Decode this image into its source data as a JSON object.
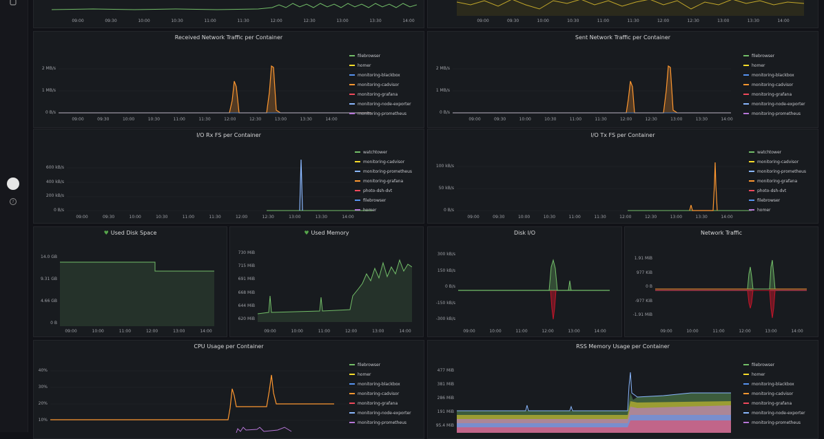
{
  "sidebar": {
    "top_icon": "dashboard-icon",
    "avatar": "user-avatar",
    "help_icon": "help-icon"
  },
  "colors": {
    "green": "#73bf69",
    "yellow": "#fade2a",
    "blue": "#5794f2",
    "orange": "#ff9830",
    "red": "#f2495c",
    "lightblue": "#8ab8ff",
    "purple": "#b877d9",
    "grey": "#7f8389",
    "darkred": "#c4162a"
  },
  "top_left": {
    "xticks": [
      "09:00",
      "09:30",
      "10:00",
      "10:30",
      "11:00",
      "11:30",
      "12:00",
      "12:30",
      "13:00",
      "13:30",
      "14:00"
    ]
  },
  "top_right": {
    "xticks": [
      "09:00",
      "09:30",
      "10:00",
      "10:30",
      "11:00",
      "11:30",
      "12:00",
      "12:30",
      "13:00",
      "13:30",
      "14:00"
    ]
  },
  "panels": {
    "net_rx": {
      "title": "Received Network Traffic per Container",
      "yticks": [
        "2 MB/s",
        "1 MB/s",
        "0 B/s"
      ],
      "xticks": [
        "09:00",
        "09:30",
        "10:00",
        "10:30",
        "11:00",
        "11:30",
        "12:00",
        "12:30",
        "13:00",
        "13:30",
        "14:00"
      ],
      "legend": [
        {
          "label": "filebrowser",
          "color": "green"
        },
        {
          "label": "homer",
          "color": "yellow"
        },
        {
          "label": "monitoring-blackbox",
          "color": "blue"
        },
        {
          "label": "monitoring-cadvisor",
          "color": "orange"
        },
        {
          "label": "monitoring-grafana",
          "color": "red"
        },
        {
          "label": "monitoring-node-exporter",
          "color": "lightblue"
        },
        {
          "label": "monitoring-prometheus",
          "color": "purple"
        }
      ]
    },
    "net_tx": {
      "title": "Sent Network Traffic per Container",
      "yticks": [
        "2 MB/s",
        "1 MB/s",
        "0 B/s"
      ],
      "xticks": [
        "09:00",
        "09:30",
        "10:00",
        "10:30",
        "11:00",
        "11:30",
        "12:00",
        "12:30",
        "13:00",
        "13:30",
        "14:00"
      ],
      "legend": [
        {
          "label": "filebrowser",
          "color": "green"
        },
        {
          "label": "homer",
          "color": "yellow"
        },
        {
          "label": "monitoring-blackbox",
          "color": "blue"
        },
        {
          "label": "monitoring-cadvisor",
          "color": "orange"
        },
        {
          "label": "monitoring-grafana",
          "color": "red"
        },
        {
          "label": "monitoring-node-exporter",
          "color": "lightblue"
        },
        {
          "label": "monitoring-prometheus",
          "color": "purple"
        }
      ]
    },
    "io_rx": {
      "title": "I/O Rx FS per Container",
      "yticks": [
        "600 kB/s",
        "400 kB/s",
        "200 kB/s",
        "0 B/s"
      ],
      "xticks": [
        "09:00",
        "09:30",
        "10:00",
        "10:30",
        "11:00",
        "11:30",
        "12:00",
        "12:30",
        "13:00",
        "13:30",
        "14:00"
      ],
      "legend": [
        {
          "label": "watchtower",
          "color": "green"
        },
        {
          "label": "monitoring-cadvisor",
          "color": "yellow"
        },
        {
          "label": "monitoring-prometheus",
          "color": "lightblue"
        },
        {
          "label": "monitoring-grafana",
          "color": "orange"
        },
        {
          "label": "photo-dsh-dvt",
          "color": "red"
        },
        {
          "label": "filebrowser",
          "color": "blue"
        },
        {
          "label": "homer",
          "color": "purple"
        }
      ]
    },
    "io_tx": {
      "title": "I/O Tx FS per Container",
      "yticks": [
        "100 kB/s",
        "50 kB/s",
        "0 B/s"
      ],
      "xticks": [
        "09:00",
        "09:30",
        "10:00",
        "10:30",
        "11:00",
        "11:30",
        "12:00",
        "12:30",
        "13:00",
        "13:30",
        "14:00"
      ],
      "legend": [
        {
          "label": "watchtower",
          "color": "green"
        },
        {
          "label": "monitoring-cadvisor",
          "color": "yellow"
        },
        {
          "label": "monitoring-prometheus",
          "color": "lightblue"
        },
        {
          "label": "monitoring-grafana",
          "color": "orange"
        },
        {
          "label": "photo-dsh-dvt",
          "color": "red"
        },
        {
          "label": "filebrowser",
          "color": "blue"
        },
        {
          "label": "homer",
          "color": "purple"
        }
      ]
    },
    "disk_space": {
      "title": "Used Disk Space",
      "yticks": [
        "14.0 GB",
        "9.31 GB",
        "4.66 GB",
        "0 B"
      ],
      "xticks": [
        "09:00",
        "10:00",
        "11:00",
        "12:00",
        "13:00",
        "14:00"
      ]
    },
    "memory": {
      "title": "Used Memory",
      "yticks": [
        "730 MiB",
        "715 MiB",
        "691 MiB",
        "668 MiB",
        "644 MiB",
        "620 MiB"
      ],
      "xticks": [
        "09:00",
        "10:00",
        "11:00",
        "12:00",
        "13:00",
        "14:00"
      ]
    },
    "disk_io": {
      "title": "Disk I/O",
      "yticks": [
        "300 kB/s",
        "150 kB/s",
        "0 B/s",
        "-150 kB/s",
        "-300 kB/s"
      ],
      "xticks": [
        "09:00",
        "10:00",
        "11:00",
        "12:00",
        "13:00",
        "14:00"
      ]
    },
    "network": {
      "title": "Network Traffic",
      "yticks": [
        "1.91 MiB",
        "977 KiB",
        "0 B",
        "-977 KiB",
        "-1.91 MiB"
      ],
      "xticks": [
        "09:00",
        "10:00",
        "11:00",
        "12:00",
        "13:00",
        "14:00"
      ]
    },
    "cpu": {
      "title": "CPU Usage per Container",
      "yticks": [
        "40%",
        "30%",
        "20%",
        "10%"
      ],
      "legend": [
        {
          "label": "filebrowser",
          "color": "green"
        },
        {
          "label": "homer",
          "color": "yellow"
        },
        {
          "label": "monitoring-blackbox",
          "color": "blue"
        },
        {
          "label": "monitoring-cadvisor",
          "color": "orange"
        },
        {
          "label": "monitoring-grafana",
          "color": "red"
        },
        {
          "label": "monitoring-node-exporter",
          "color": "lightblue"
        },
        {
          "label": "monitoring-prometheus",
          "color": "purple"
        }
      ]
    },
    "rss": {
      "title": "RSS Memory Usage per Container",
      "yticks": [
        "477 MiB",
        "381 MiB",
        "286 MiB",
        "191 MiB",
        "95.4 MiB"
      ],
      "legend": [
        {
          "label": "filebrowser",
          "color": "green"
        },
        {
          "label": "homer",
          "color": "yellow"
        },
        {
          "label": "monitoring-blackbox",
          "color": "blue"
        },
        {
          "label": "monitoring-cadvisor",
          "color": "orange"
        },
        {
          "label": "monitoring-grafana",
          "color": "red"
        },
        {
          "label": "monitoring-node-exporter",
          "color": "lightblue"
        },
        {
          "label": "monitoring-prometheus",
          "color": "purple"
        }
      ]
    }
  }
}
